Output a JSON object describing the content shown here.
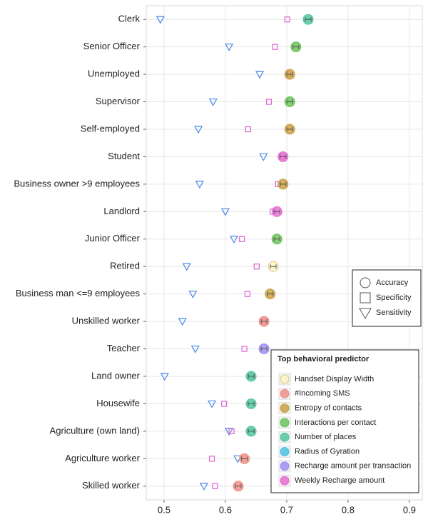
{
  "chart_data": {
    "type": "dot",
    "categories": [
      "Clerk",
      "Senior Officer",
      "Unemployed",
      "Supervisor",
      "Self-employed",
      "Student",
      "Business owner >9 employees",
      "Landlord",
      "Junior Officer",
      "Retired",
      "Business man <=9 employees",
      "Unskilled worker",
      "Teacher",
      "Land owner",
      "Housewife",
      "Agriculture (own land)",
      "Agriculture worker",
      "Skilled worker"
    ],
    "series": [
      {
        "name": "Accuracy",
        "shape": "circle",
        "values": [
          0.735,
          0.715,
          0.705,
          0.705,
          0.705,
          0.694,
          0.694,
          0.684,
          0.684,
          0.678,
          0.673,
          0.663,
          0.663,
          0.642,
          0.642,
          0.642,
          0.631,
          0.621
        ]
      },
      {
        "name": "Specificity",
        "shape": "square",
        "color": "#e05fd0",
        "values": [
          0.701,
          0.681,
          0.702,
          0.671,
          0.637,
          0.692,
          0.686,
          0.677,
          0.627,
          0.651,
          0.636,
          0.663,
          0.631,
          0.642,
          0.598,
          0.61,
          0.578,
          0.583
        ]
      },
      {
        "name": "Sensitivity",
        "shape": "triangle",
        "color": "#4a86e8",
        "values": [
          0.494,
          0.606,
          0.656,
          0.58,
          0.556,
          0.662,
          0.558,
          0.6,
          0.614,
          0.537,
          0.547,
          0.53,
          0.551,
          0.501,
          0.578,
          0.606,
          0.62,
          0.565
        ]
      }
    ],
    "top_predictor": [
      "Number of places",
      "Interactions per contact",
      "Entropy of contacts",
      "Interactions per contact",
      "Entropy of contacts",
      "Weekly Recharge amount",
      "Entropy of contacts",
      "Weekly Recharge amount",
      "Interactions per contact",
      "Handset Display Width",
      "Entropy of contacts",
      "#Incoming SMS",
      "Recharge amount per transaction",
      "Number of places",
      "Number of places",
      "Number of places",
      "#Incoming SMS",
      "#Incoming SMS"
    ],
    "predictor_legend": {
      "title": "Top behavioral predictor",
      "items": [
        {
          "name": "Handset Display Width",
          "color": "#fbf3c4"
        },
        {
          "name": "#Incoming SMS",
          "color": "#f08f88"
        },
        {
          "name": "Entropy of contacts",
          "color": "#c9a247"
        },
        {
          "name": "Interactions per contact",
          "color": "#6cc35a"
        },
        {
          "name": "Number of places",
          "color": "#52c69d"
        },
        {
          "name": "Radius of Gyration",
          "color": "#4ec2e0"
        },
        {
          "name": "Recharge amount per transaction",
          "color": "#9f8ff0"
        },
        {
          "name": "Weekly Recharge amount",
          "color": "#e56fd4"
        }
      ]
    },
    "xlim": [
      0.471,
      0.921
    ],
    "xticks": [
      0.5,
      0.6,
      0.7,
      0.8,
      0.9
    ],
    "grid": true
  }
}
